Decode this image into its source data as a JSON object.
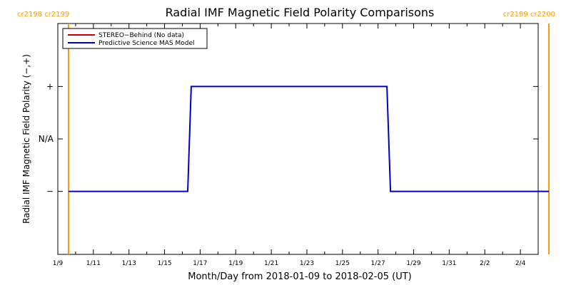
{
  "chart_data": {
    "type": "line",
    "title": "Radial IMF Magnetic Field Polarity Comparisons",
    "xlabel": "Month/Day from 2018-01-09 to 2018-02-05 (UT)",
    "ylabel": "Radial IMF Magnetic Field Polarity (−,+)",
    "x_tick_labels": [
      "1/9",
      "1/11",
      "1/13",
      "1/15",
      "1/17",
      "1/19",
      "1/21",
      "1/23",
      "1/25",
      "1/27",
      "1/29",
      "1/31",
      "2/2",
      "2/4"
    ],
    "y_tick_labels": [
      "+",
      "N/A",
      "−"
    ],
    "y_levels": {
      "plus": 1,
      "na": 0,
      "minus": -1
    },
    "ylim": [
      -2.2,
      2.2
    ],
    "xlim_days": [
      0,
      27
    ],
    "legend_placement": "top-left",
    "rotation_markers": [
      {
        "day": 0.6,
        "label": "cr2198 cr2199",
        "color": "#ff9900"
      },
      {
        "day": 27.6,
        "label": "cr2199 cr2200",
        "color": "#ff9900"
      }
    ],
    "series": [
      {
        "name": "STEREO−Behind (No data)",
        "color": "#cc0000",
        "x": [],
        "y": []
      },
      {
        "name": "Predictive Science MAS Model",
        "color": "#0000cc",
        "x": [
          0.6,
          7.3,
          7.5,
          18.5,
          18.7,
          27.6
        ],
        "y": [
          -1,
          -1,
          1,
          1,
          -1,
          -1
        ]
      }
    ]
  }
}
